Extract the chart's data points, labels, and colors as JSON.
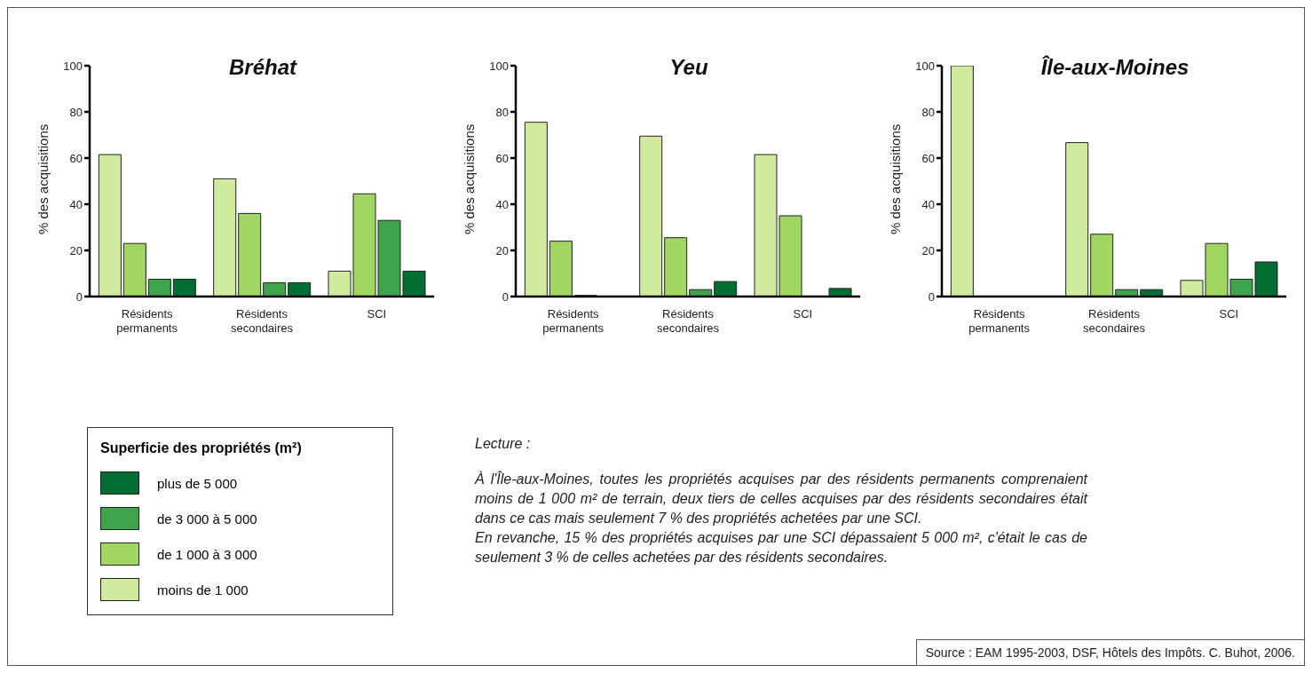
{
  "chart_data": [
    {
      "type": "bar",
      "title": "Bréhat",
      "ylabel": "% des acquisitions",
      "categories": [
        "Résidents permanents",
        "Résidents secondaires",
        "SCI"
      ],
      "ylim": [
        0,
        100
      ],
      "yticks": [
        0,
        20,
        40,
        60,
        80,
        100
      ],
      "legend": "bottom left",
      "legend_title": "Superficie des propriétés (m²)",
      "series": [
        {
          "name": "moins de 1 000",
          "color": "#d0eba0",
          "values": [
            61.5,
            51,
            11
          ]
        },
        {
          "name": "de 1 000 à 3 000",
          "color": "#a0d662",
          "values": [
            23,
            36,
            44.5
          ]
        },
        {
          "name": "de 3 000 à 5 000",
          "color": "#3ea34a",
          "values": [
            7.5,
            6,
            33
          ]
        },
        {
          "name": "plus de 5 000",
          "color": "#006e30",
          "values": [
            7.5,
            6,
            11
          ]
        }
      ],
      "annotations": [
        "Lecture :",
        "À l'Île-aux-Moines, toutes les propriétés acquises par des résidents permanents comprenaient moins de 1 000 m² de terrain, deux tiers de celles acquises par des résidents secondaires était dans ce cas mais seulement 7 % des propriétés achetées par une SCI.",
        "En revanche, 15 % des propriétés acquises par une SCI dépassaient 5 000 m², c'était le cas de seulement 3 % de celles achetées par des résidents secondaires.",
        "Source : EAM 1995-2003, DSF, Hôtels des Impôts. C. Buhot, 2006."
      ]
    },
    {
      "type": "bar",
      "title": "Yeu",
      "ylabel": "% des acquisitions",
      "categories": [
        "Résidents permanents",
        "Résidents secondaires",
        "SCI"
      ],
      "ylim": [
        0,
        100
      ],
      "yticks": [
        0,
        20,
        40,
        60,
        80,
        100
      ],
      "series": [
        {
          "color": "#d0eba0",
          "values": [
            75.5,
            69.5,
            61.5
          ]
        },
        {
          "color": "#a0d662",
          "values": [
            24,
            25.5,
            35
          ]
        },
        {
          "color": "#3ea34a",
          "values": [
            0.5,
            3,
            0
          ]
        },
        {
          "color": "#006e30",
          "values": [
            0,
            6.5,
            3.5
          ]
        }
      ]
    },
    {
      "type": "bar",
      "title": "Île-aux-Moines",
      "ylabel": "% des acquisitions",
      "categories": [
        "Résidents permanents",
        "Résidents secondaires",
        "SCI"
      ],
      "ylim": [
        0,
        100
      ],
      "yticks": [
        0,
        20,
        40,
        60,
        80,
        100
      ],
      "series": [
        {
          "color": "#d0eba0",
          "values": [
            100,
            66.7,
            7
          ]
        },
        {
          "color": "#a0d662",
          "values": [
            0,
            27,
            23
          ]
        },
        {
          "color": "#3ea34a",
          "values": [
            0,
            3,
            7.5
          ]
        },
        {
          "color": "#006e30",
          "values": [
            0,
            3,
            15
          ]
        }
      ]
    }
  ]
}
